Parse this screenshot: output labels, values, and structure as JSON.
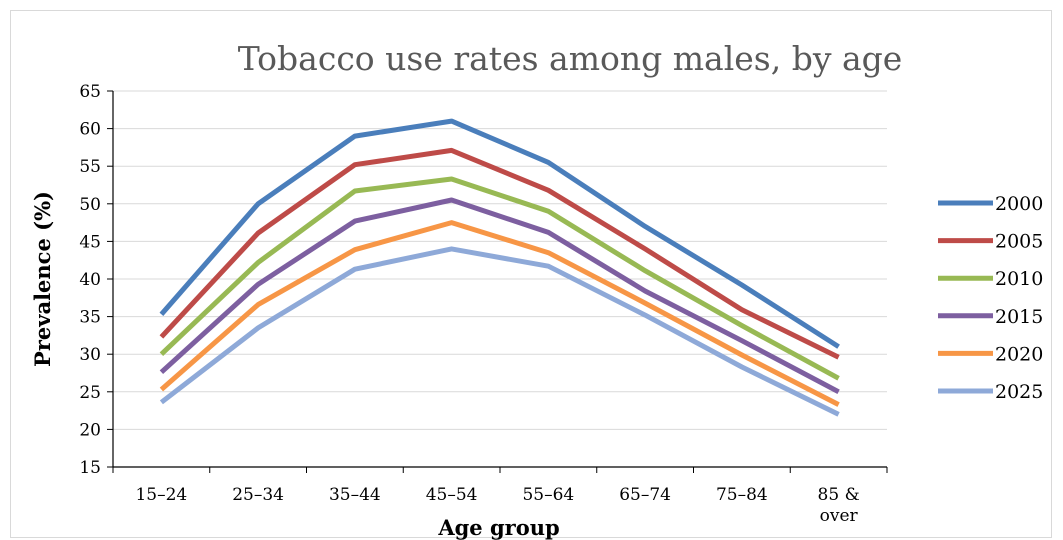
{
  "chart_data": {
    "type": "line",
    "title": "Tobacco use rates among males, by age",
    "xlabel": "Age group",
    "ylabel": "Prevalence (%)",
    "ylim": [
      15,
      65
    ],
    "yticks": [
      15,
      20,
      25,
      30,
      35,
      40,
      45,
      50,
      55,
      60,
      65
    ],
    "grid": true,
    "legend_position": "right",
    "categories": [
      "15–24",
      "25–34",
      "35–44",
      "45–54",
      "55–64",
      "65–74",
      "75–84",
      "85 & over"
    ],
    "series": [
      {
        "name": "2000",
        "color": "#4a7ebb",
        "values": [
          35.3,
          50.0,
          59.0,
          61.0,
          55.5,
          47.0,
          39.2,
          31.0
        ]
      },
      {
        "name": "2005",
        "color": "#be4b48",
        "values": [
          32.3,
          46.1,
          55.2,
          57.1,
          51.8,
          44.0,
          35.9,
          29.6
        ]
      },
      {
        "name": "2010",
        "color": "#98b954",
        "values": [
          30.0,
          42.2,
          51.7,
          53.3,
          49.0,
          41.1,
          33.8,
          26.8
        ]
      },
      {
        "name": "2015",
        "color": "#7d5fa0",
        "values": [
          27.6,
          39.3,
          47.7,
          50.5,
          46.2,
          38.4,
          31.8,
          25.0
        ]
      },
      {
        "name": "2020",
        "color": "#f79646",
        "values": [
          25.3,
          36.6,
          43.9,
          47.5,
          43.5,
          36.8,
          29.9,
          23.3
        ]
      },
      {
        "name": "2025",
        "color": "#8ea9d8",
        "values": [
          23.6,
          33.5,
          41.3,
          44.0,
          41.7,
          35.2,
          28.3,
          22.0
        ]
      }
    ]
  }
}
